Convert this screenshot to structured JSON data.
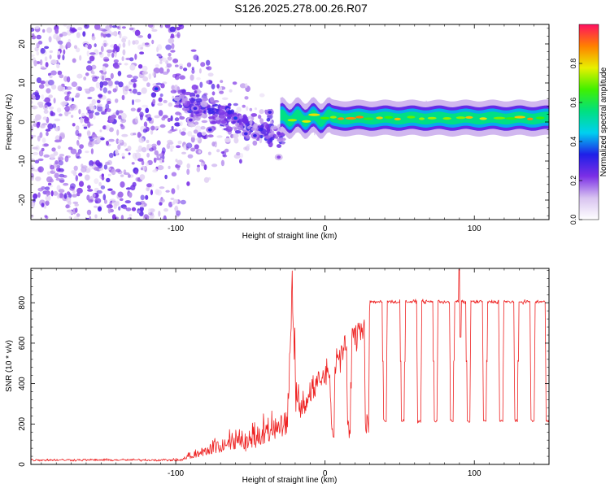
{
  "figure_title": "S126.2025.278.00.26.R07",
  "colors": {
    "snr_line": "#ee2222",
    "axis": "#000000",
    "background": "#ffffff"
  },
  "chart_data": [
    {
      "type": "heatmap",
      "panel": "spectrogram",
      "title": "S126.2025.278.00.26.R07",
      "xlabel": "Height of straight line (km)",
      "ylabel": "Frequency (Hz)",
      "xlim": [
        -197,
        150
      ],
      "ylim": [
        -25,
        25
      ],
      "xticks": [
        -100,
        0,
        100
      ],
      "yticks": [
        -20,
        -10,
        0,
        10,
        20
      ],
      "grid": false,
      "colorbar": {
        "label": "Normalized spectral amplitude",
        "range": [
          0,
          1
        ],
        "ticks": [
          0.0,
          0.2,
          0.4,
          0.6,
          0.8
        ],
        "colormap": [
          "#ffffff",
          "#d8c3f0",
          "#7b2fe6",
          "#1f1fe8",
          "#00d0f0",
          "#00e080",
          "#40f000",
          "#e8f000",
          "#ff8000",
          "#ff1060"
        ]
      },
      "features": {
        "noise_region_x": [
          -197,
          -30
        ],
        "dense_blobs": [
          {
            "x": -113,
            "f": 8.5,
            "amp": 0.35
          },
          {
            "x": -90,
            "f": 0.5,
            "amp": 0.25
          },
          {
            "x": -87,
            "f": 3.5,
            "amp": 0.3
          },
          {
            "x": -77,
            "f": -2.0,
            "amp": 0.3
          },
          {
            "x": -60,
            "f": 1.0,
            "amp": 0.35
          },
          {
            "x": -53,
            "f": -3.0,
            "amp": 0.3
          },
          {
            "x": -47,
            "f": -3.5,
            "amp": 0.3
          },
          {
            "x": -37,
            "f": 2.5,
            "amp": 0.3
          },
          {
            "x": -31,
            "f": -9.0,
            "amp": 0.2
          }
        ],
        "carrier_line": {
          "x_start": -30,
          "x_end": 150,
          "frequency_hz": 1.0,
          "peak_amplitude": 0.9
        }
      }
    },
    {
      "type": "line",
      "panel": "snr",
      "xlabel": "Height of straight line (km)",
      "ylabel": "SNR (10 * v/v)",
      "xlim": [
        -197,
        150
      ],
      "ylim": [
        0,
        970
      ],
      "xticks": [
        -100,
        0,
        100
      ],
      "yticks": [
        0,
        200,
        400,
        600,
        800
      ],
      "grid": false,
      "series": [
        {
          "name": "SNR",
          "color": "#ee2222",
          "profile": {
            "baseline_x": [
              -197,
              -95
            ],
            "baseline_snr": 22,
            "rise_x": [
              -95,
              30
            ],
            "first_peak": {
              "x": -22,
              "snr": 950
            },
            "plateau_snr": 805,
            "plateau_x": [
              30,
              150
            ],
            "dropout_snr": 215,
            "dropout_centers_x": [
              5,
              16,
              28,
              40,
              52,
              63,
              74,
              85,
              96,
              107,
              118,
              128,
              139,
              149
            ],
            "spike": {
              "x": 90,
              "snr": 965
            }
          }
        }
      ]
    }
  ]
}
